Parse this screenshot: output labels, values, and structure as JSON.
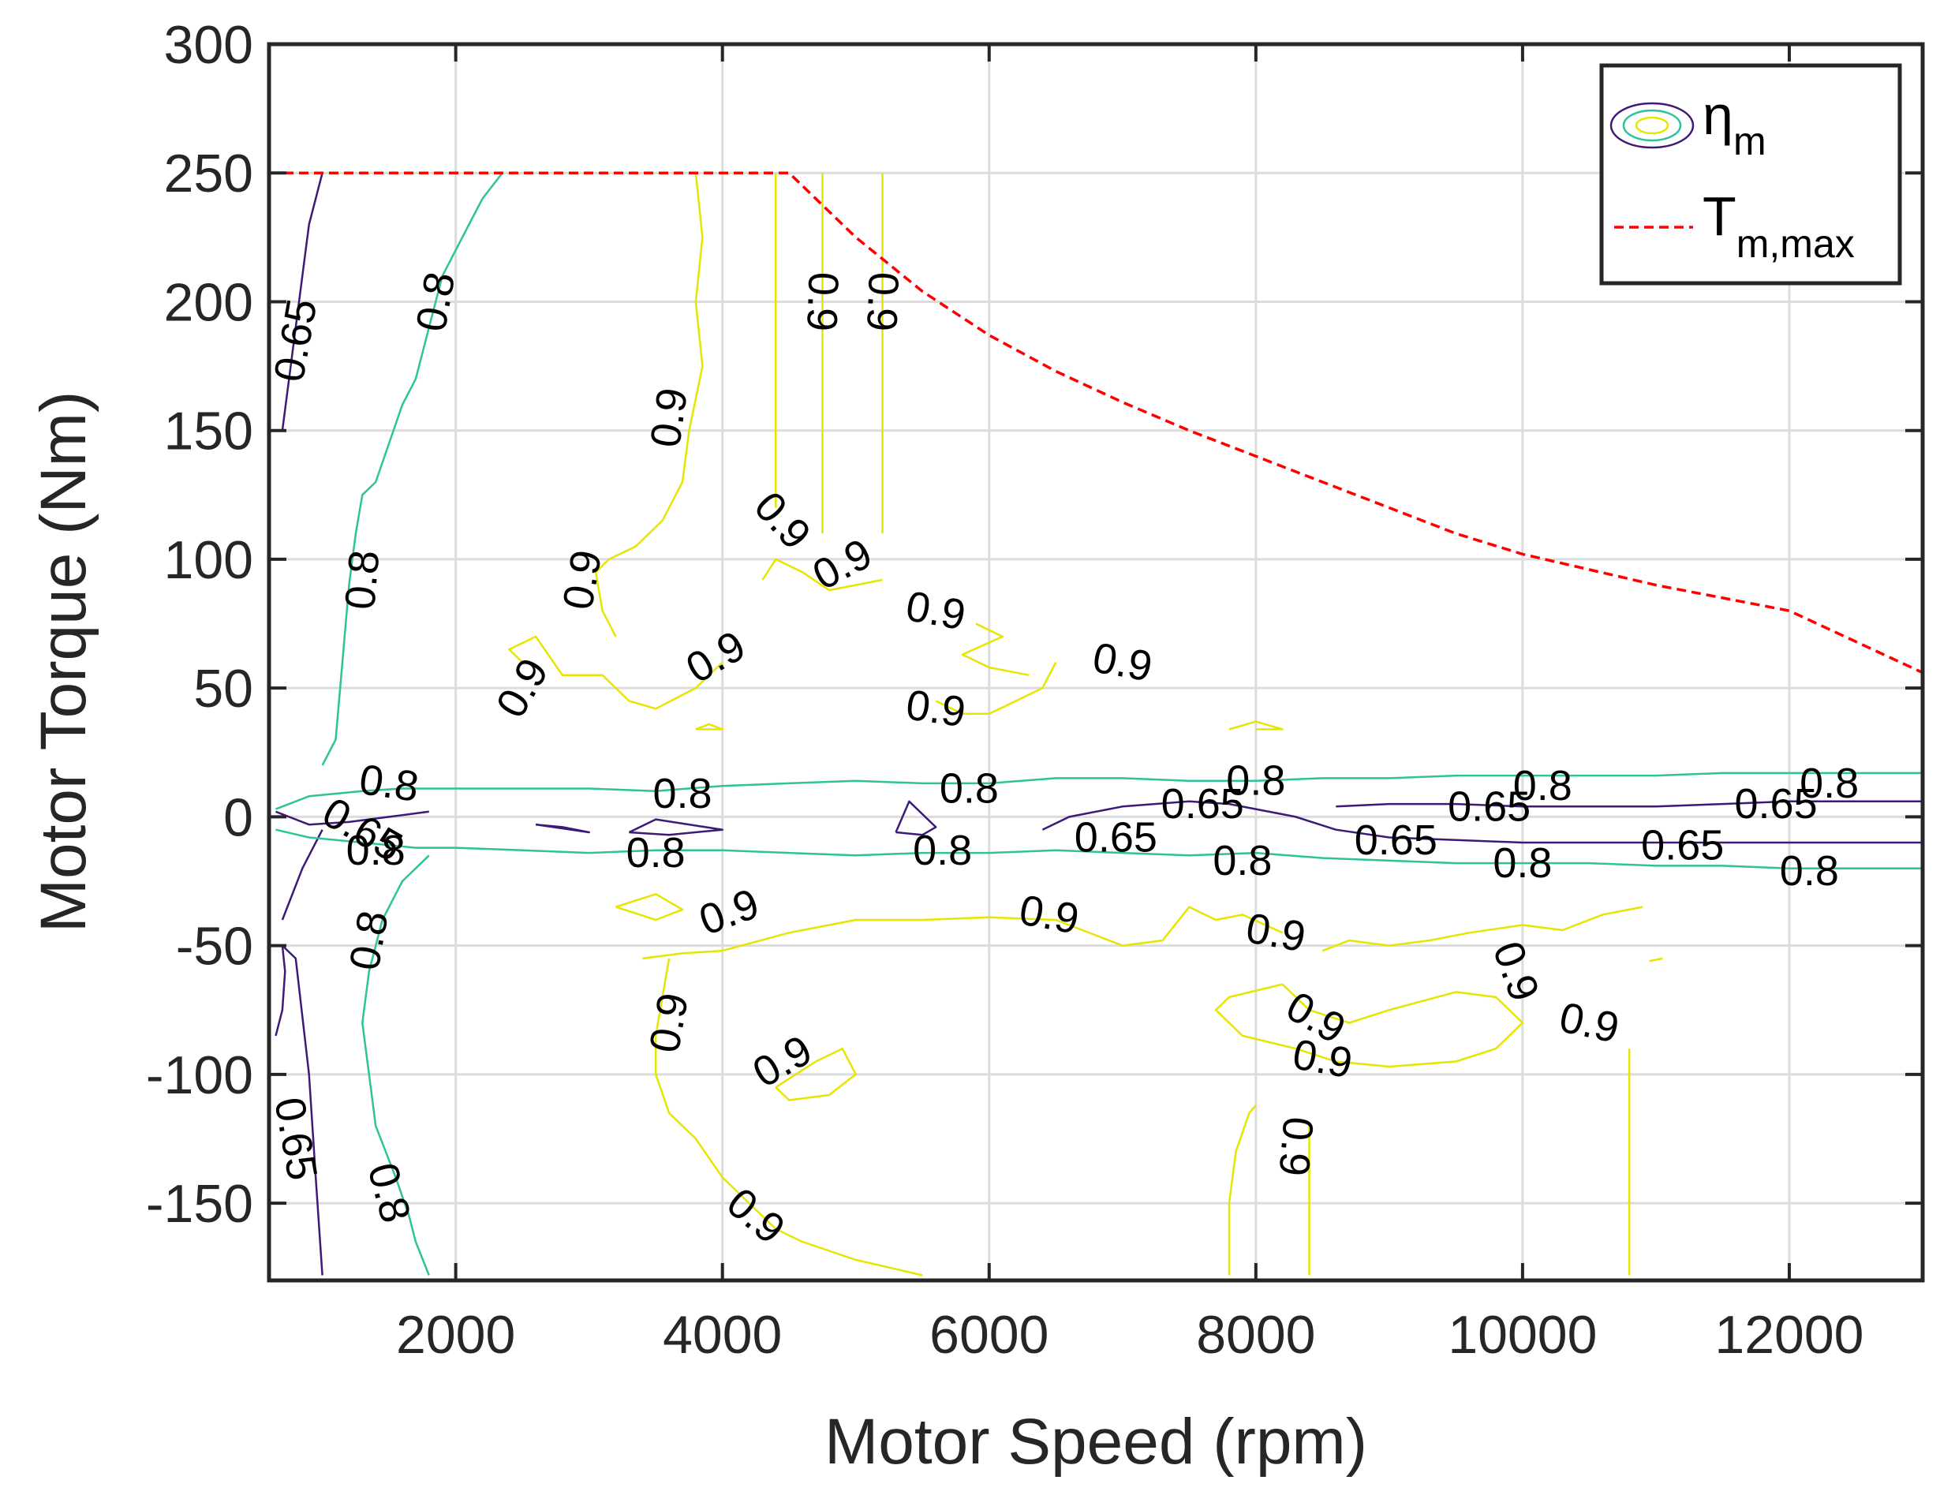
{
  "chart_data": {
    "type": "contour",
    "xlabel": "Motor Speed (rpm)",
    "ylabel": "Motor Torque (Nm)",
    "xlim": [
      600,
      13000
    ],
    "ylim": [
      -180,
      300
    ],
    "xticks": [
      2000,
      4000,
      6000,
      8000,
      10000,
      12000
    ],
    "yticks": [
      300,
      250,
      200,
      150,
      100,
      50,
      0,
      -50,
      -100,
      -150
    ],
    "xtick_labels": [
      "2000",
      "4000",
      "6000",
      "8000",
      "10000",
      "12000"
    ],
    "ytick_labels": [
      "300",
      "250",
      "200",
      "150",
      "100",
      "50",
      "0",
      "-50",
      "-100",
      "-150"
    ],
    "grid": true,
    "legend": {
      "placement": "top-right",
      "entries": [
        {
          "symbol": "eta",
          "subscript": "m"
        },
        {
          "symbol": "T",
          "subscript": "m,max"
        }
      ]
    },
    "colors": {
      "level_0_65": "#3d1a78",
      "level_0_8": "#2ec39a",
      "level_0_9": "#e6e600",
      "tmax": "#ff0000",
      "grid": "#dcdcdc",
      "axis": "#262626"
    },
    "contour_levels": [
      0.65,
      0.8,
      0.9
    ],
    "tmax_curve": {
      "name": "T_m,max",
      "x": [
        600,
        4500,
        5000,
        5500,
        6000,
        6500,
        7000,
        7500,
        8000,
        8500,
        9000,
        9500,
        10000,
        10500,
        11000,
        11500,
        12000,
        12500,
        13000
      ],
      "y": [
        250,
        250,
        225,
        204,
        187,
        173,
        161,
        150,
        140,
        130,
        120,
        110,
        102,
        96,
        90,
        85,
        80,
        68,
        56
      ]
    },
    "contours": [
      {
        "level": 0.65,
        "x": [
          700,
          800,
          900,
          1000
        ],
        "y": [
          150,
          190,
          230,
          250
        ]
      },
      {
        "level": 0.65,
        "x": [
          650,
          900,
          1200,
          1500,
          1800
        ],
        "y": [
          2,
          -3,
          -2,
          0,
          2
        ]
      },
      {
        "level": 0.65,
        "x": [
          700,
          850,
          1000
        ],
        "y": [
          -40,
          -20,
          -5
        ]
      },
      {
        "level": 0.65,
        "x": [
          650,
          700,
          720,
          700,
          800,
          900,
          950,
          1000
        ],
        "y": [
          -85,
          -75,
          -60,
          -50,
          -55,
          -100,
          -140,
          -178
        ]
      },
      {
        "level": 0.65,
        "x": [
          2600,
          2800,
          3000,
          2600
        ],
        "y": [
          -3,
          -4,
          -6,
          -3
        ]
      },
      {
        "level": 0.65,
        "x": [
          3300,
          3500,
          4000,
          3600,
          3300
        ],
        "y": [
          -6,
          -1,
          -5,
          -7,
          -6
        ]
      },
      {
        "level": 0.65,
        "x": [
          5300,
          5400,
          5600,
          5500,
          5300
        ],
        "y": [
          -6,
          6,
          -4,
          -7,
          -6
        ]
      },
      {
        "level": 0.65,
        "x": [
          6400,
          6600,
          7000,
          7500,
          7800,
          8000,
          8300,
          8600,
          9000,
          9500,
          10000,
          10500,
          11000,
          11500,
          12000,
          12500,
          13000
        ],
        "y": [
          -5,
          0,
          4,
          6,
          5,
          3,
          0,
          -5,
          -8,
          -9,
          -10,
          -10,
          -10,
          -10,
          -10,
          -10,
          -10
        ]
      },
      {
        "level": 0.65,
        "x": [
          8600,
          9000,
          9500,
          10000,
          10500,
          11000,
          11500,
          12000,
          12500,
          13000
        ],
        "y": [
          4,
          5,
          5,
          4,
          4,
          4,
          5,
          6,
          6,
          6
        ]
      },
      {
        "level": 0.8,
        "x": [
          1000,
          1100,
          1150,
          1200,
          1250,
          1300,
          1400,
          1500,
          1600,
          1700,
          1800,
          1900,
          2000,
          2100,
          2200,
          2350
        ],
        "y": [
          20,
          30,
          60,
          90,
          110,
          125,
          130,
          145,
          160,
          170,
          190,
          210,
          220,
          230,
          240,
          250
        ]
      },
      {
        "level": 0.8,
        "x": [
          650,
          900,
          1300,
          1600,
          2000,
          2500,
          3000,
          3500,
          4000,
          4500,
          5000,
          5500,
          6000,
          6500,
          7000,
          7500,
          8000,
          8500,
          9000,
          9500,
          10000,
          10500,
          11000,
          11500,
          12000,
          12500,
          13000
        ],
        "y": [
          3,
          8,
          10,
          11,
          11,
          11,
          11,
          10,
          12,
          13,
          14,
          13,
          13,
          15,
          15,
          14,
          14,
          15,
          15,
          16,
          16,
          16,
          16,
          17,
          17,
          17,
          17
        ]
      },
      {
        "level": 0.8,
        "x": [
          650,
          900,
          1300,
          1700,
          2000,
          2500,
          3000,
          3500,
          4000,
          4500,
          5000,
          5500,
          6000,
          6500,
          7000,
          7500,
          8000,
          8500,
          9000,
          9500,
          10000,
          10500,
          11000,
          11500,
          12000,
          12500,
          13000
        ],
        "y": [
          -5,
          -8,
          -10,
          -12,
          -12,
          -13,
          -14,
          -13,
          -13,
          -14,
          -15,
          -14,
          -14,
          -13,
          -14,
          -15,
          -14,
          -16,
          -17,
          -18,
          -18,
          -18,
          -19,
          -19,
          -20,
          -20,
          -20
        ]
      },
      {
        "level": 0.8,
        "x": [
          1800,
          1600,
          1450,
          1350,
          1300,
          1350,
          1400,
          1550,
          1650,
          1700,
          1800
        ],
        "y": [
          -15,
          -25,
          -40,
          -60,
          -80,
          -100,
          -120,
          -140,
          -155,
          -165,
          -178
        ]
      },
      {
        "level": 0.9,
        "x": [
          3800,
          3850,
          3800,
          3850,
          3750,
          3700,
          3550,
          3350,
          3150,
          3050,
          3100,
          3200
        ],
        "y": [
          250,
          225,
          200,
          175,
          150,
          130,
          115,
          105,
          100,
          95,
          80,
          70
        ]
      },
      {
        "level": 0.9,
        "x": [
          4400,
          4400,
          4400,
          4400
        ],
        "y": [
          250,
          200,
          150,
          120
        ]
      },
      {
        "level": 0.9,
        "x": [
          4750,
          4750,
          4750,
          4750
        ],
        "y": [
          250,
          200,
          150,
          110
        ]
      },
      {
        "level": 0.9,
        "x": [
          5200,
          5200,
          5200,
          5200
        ],
        "y": [
          250,
          200,
          150,
          110
        ]
      },
      {
        "level": 0.9,
        "x": [
          2500,
          2400,
          2600,
          2800,
          3100,
          3300,
          3500,
          3800,
          4000
        ],
        "y": [
          60,
          65,
          70,
          55,
          55,
          45,
          42,
          50,
          60
        ]
      },
      {
        "level": 0.9,
        "x": [
          4300,
          4400,
          4600,
          4800,
          5000,
          5200
        ],
        "y": [
          92,
          100,
          95,
          88,
          90,
          92
        ]
      },
      {
        "level": 0.9,
        "x": [
          6500,
          6400,
          6200,
          6000,
          5800,
          5600
        ],
        "y": [
          60,
          50,
          45,
          40,
          40,
          45
        ]
      },
      {
        "level": 0.9,
        "x": [
          5900,
          6100,
          5800,
          6000,
          6300
        ],
        "y": [
          75,
          70,
          63,
          58,
          55
        ]
      },
      {
        "level": 0.9,
        "x": [
          3800,
          3900,
          4000,
          3800
        ],
        "y": [
          34,
          36,
          34,
          34
        ]
      },
      {
        "level": 0.9,
        "x": [
          7800,
          8000,
          8200,
          8000
        ],
        "y": [
          34,
          37,
          34,
          34
        ]
      },
      {
        "level": 0.9,
        "x": [
          3200,
          3500,
          3700,
          3500,
          3200
        ],
        "y": [
          -35,
          -30,
          -36,
          -40,
          -35
        ]
      },
      {
        "level": 0.9,
        "x": [
          3400,
          3700,
          4000,
          4500,
          5000,
          5500,
          6000,
          6500,
          7000,
          7300,
          7500,
          7700,
          7900,
          8200
        ],
        "y": [
          -55,
          -53,
          -52,
          -45,
          -40,
          -40,
          -39,
          -40,
          -50,
          -48,
          -35,
          -40,
          -38,
          -45
        ]
      },
      {
        "level": 0.9,
        "x": [
          8500,
          8700,
          9000,
          9300,
          9600,
          10000,
          10300,
          10600,
          10900
        ],
        "y": [
          -52,
          -48,
          -50,
          -48,
          -45,
          -42,
          -44,
          -38,
          -35
        ]
      },
      {
        "level": 0.9,
        "x": [
          3600,
          3550,
          3500,
          3500,
          3600,
          3800,
          4000,
          4200,
          4400,
          4600,
          5000,
          5500
        ],
        "y": [
          -55,
          -70,
          -85,
          -100,
          -115,
          -125,
          -140,
          -150,
          -160,
          -165,
          -172,
          -178
        ]
      },
      {
        "level": 0.9,
        "x": [
          4400,
          4700,
          4900,
          5000,
          4800,
          4500,
          4400
        ],
        "y": [
          -105,
          -95,
          -90,
          -100,
          -108,
          -110,
          -105
        ]
      },
      {
        "level": 0.9,
        "x": [
          8200,
          7800,
          7700,
          7900,
          8300,
          8600,
          9000,
          9500,
          9800,
          10000,
          9800,
          9500,
          9000,
          8700,
          8400,
          8200
        ],
        "y": [
          -65,
          -70,
          -75,
          -85,
          -90,
          -95,
          -97,
          -95,
          -90,
          -80,
          -70,
          -68,
          -75,
          -80,
          -75,
          -65
        ]
      },
      {
        "level": 0.9,
        "x": [
          7800,
          7800,
          7850,
          7950,
          8000
        ],
        "y": [
          -178,
          -150,
          -130,
          -115,
          -112
        ]
      },
      {
        "level": 0.9,
        "x": [
          8400,
          8400,
          8400
        ],
        "y": [
          -178,
          -150,
          -120
        ]
      },
      {
        "level": 0.9,
        "x": [
          10800,
          10800,
          10800
        ],
        "y": [
          -178,
          -140,
          -90
        ]
      },
      {
        "level": 0.9,
        "x": [
          10950,
          11050
        ],
        "y": [
          -56,
          -55
        ]
      }
    ],
    "contour_labels": [
      {
        "text": "0.65",
        "x": 800,
        "y": 185,
        "angle": -80
      },
      {
        "text": "0.8",
        "x": 1850,
        "y": 200,
        "angle": -80
      },
      {
        "text": "0.8",
        "x": 1300,
        "y": 92,
        "angle": -85
      },
      {
        "text": "0.9",
        "x": 3600,
        "y": 155,
        "angle": -82
      },
      {
        "text": "0.9",
        "x": 4750,
        "y": 200,
        "angle": 92
      },
      {
        "text": "0.9",
        "x": 5200,
        "y": 200,
        "angle": 92
      },
      {
        "text": "0.9",
        "x": 4450,
        "y": 115,
        "angle": 48
      },
      {
        "text": "0.9",
        "x": 4900,
        "y": 98,
        "angle": -28
      },
      {
        "text": "0.9",
        "x": 2950,
        "y": 92,
        "angle": -80
      },
      {
        "text": "0.9",
        "x": 5600,
        "y": 80,
        "angle": 10
      },
      {
        "text": "0.9",
        "x": 3950,
        "y": 62,
        "angle": -30
      },
      {
        "text": "0.9",
        "x": 7000,
        "y": 60,
        "angle": 10
      },
      {
        "text": "0.9",
        "x": 5600,
        "y": 42,
        "angle": 8
      },
      {
        "text": "0.9",
        "x": 2500,
        "y": 50,
        "angle": -60
      },
      {
        "text": "0.8",
        "x": 1500,
        "y": 13,
        "angle": 8
      },
      {
        "text": "0.8",
        "x": 3700,
        "y": 9,
        "angle": 0
      },
      {
        "text": "0.8",
        "x": 5850,
        "y": 11,
        "angle": 0
      },
      {
        "text": "0.8",
        "x": 8000,
        "y": 14,
        "angle": 0
      },
      {
        "text": "0.8",
        "x": 10150,
        "y": 12,
        "angle": 0
      },
      {
        "text": "0.8",
        "x": 12300,
        "y": 13,
        "angle": 0
      },
      {
        "text": "0.65",
        "x": 7600,
        "y": 5,
        "angle": 0
      },
      {
        "text": "0.65",
        "x": 9750,
        "y": 4,
        "angle": 0
      },
      {
        "text": "0.65",
        "x": 11900,
        "y": 5,
        "angle": 0
      },
      {
        "text": "0.65",
        "x": 1300,
        "y": -5,
        "angle": 30
      },
      {
        "text": "0.8",
        "x": 1400,
        "y": -13,
        "angle": 0
      },
      {
        "text": "0.8",
        "x": 3500,
        "y": -14,
        "angle": 0
      },
      {
        "text": "0.8",
        "x": 5650,
        "y": -13,
        "angle": 0
      },
      {
        "text": "0.65",
        "x": 6950,
        "y": -8,
        "angle": 0
      },
      {
        "text": "0.8",
        "x": 7900,
        "y": -17,
        "angle": 0
      },
      {
        "text": "0.65",
        "x": 9050,
        "y": -9,
        "angle": 0
      },
      {
        "text": "0.8",
        "x": 10000,
        "y": -18,
        "angle": 0
      },
      {
        "text": "0.65",
        "x": 11200,
        "y": -11,
        "angle": 0
      },
      {
        "text": "0.8",
        "x": 12150,
        "y": -21,
        "angle": 0
      },
      {
        "text": "0.8",
        "x": 1350,
        "y": -48,
        "angle": -80
      },
      {
        "text": "0.9",
        "x": 4050,
        "y": -37,
        "angle": -20
      },
      {
        "text": "0.9",
        "x": 6450,
        "y": -38,
        "angle": 10
      },
      {
        "text": "0.9",
        "x": 8150,
        "y": -45,
        "angle": 10
      },
      {
        "text": "0.9",
        "x": 9950,
        "y": -60,
        "angle": 70
      },
      {
        "text": "0.9",
        "x": 10500,
        "y": -80,
        "angle": 12
      },
      {
        "text": "0.9",
        "x": 8450,
        "y": -78,
        "angle": 30
      },
      {
        "text": "0.9",
        "x": 8500,
        "y": -94,
        "angle": 10
      },
      {
        "text": "0.9",
        "x": 3600,
        "y": -80,
        "angle": -80
      },
      {
        "text": "0.9",
        "x": 4450,
        "y": -95,
        "angle": -30
      },
      {
        "text": "0.65",
        "x": 800,
        "y": -125,
        "angle": 80
      },
      {
        "text": "0.8",
        "x": 1500,
        "y": -146,
        "angle": 75
      },
      {
        "text": "0.9",
        "x": 4250,
        "y": -155,
        "angle": 40
      },
      {
        "text": "0.9",
        "x": 8300,
        "y": -128,
        "angle": 95
      }
    ]
  }
}
